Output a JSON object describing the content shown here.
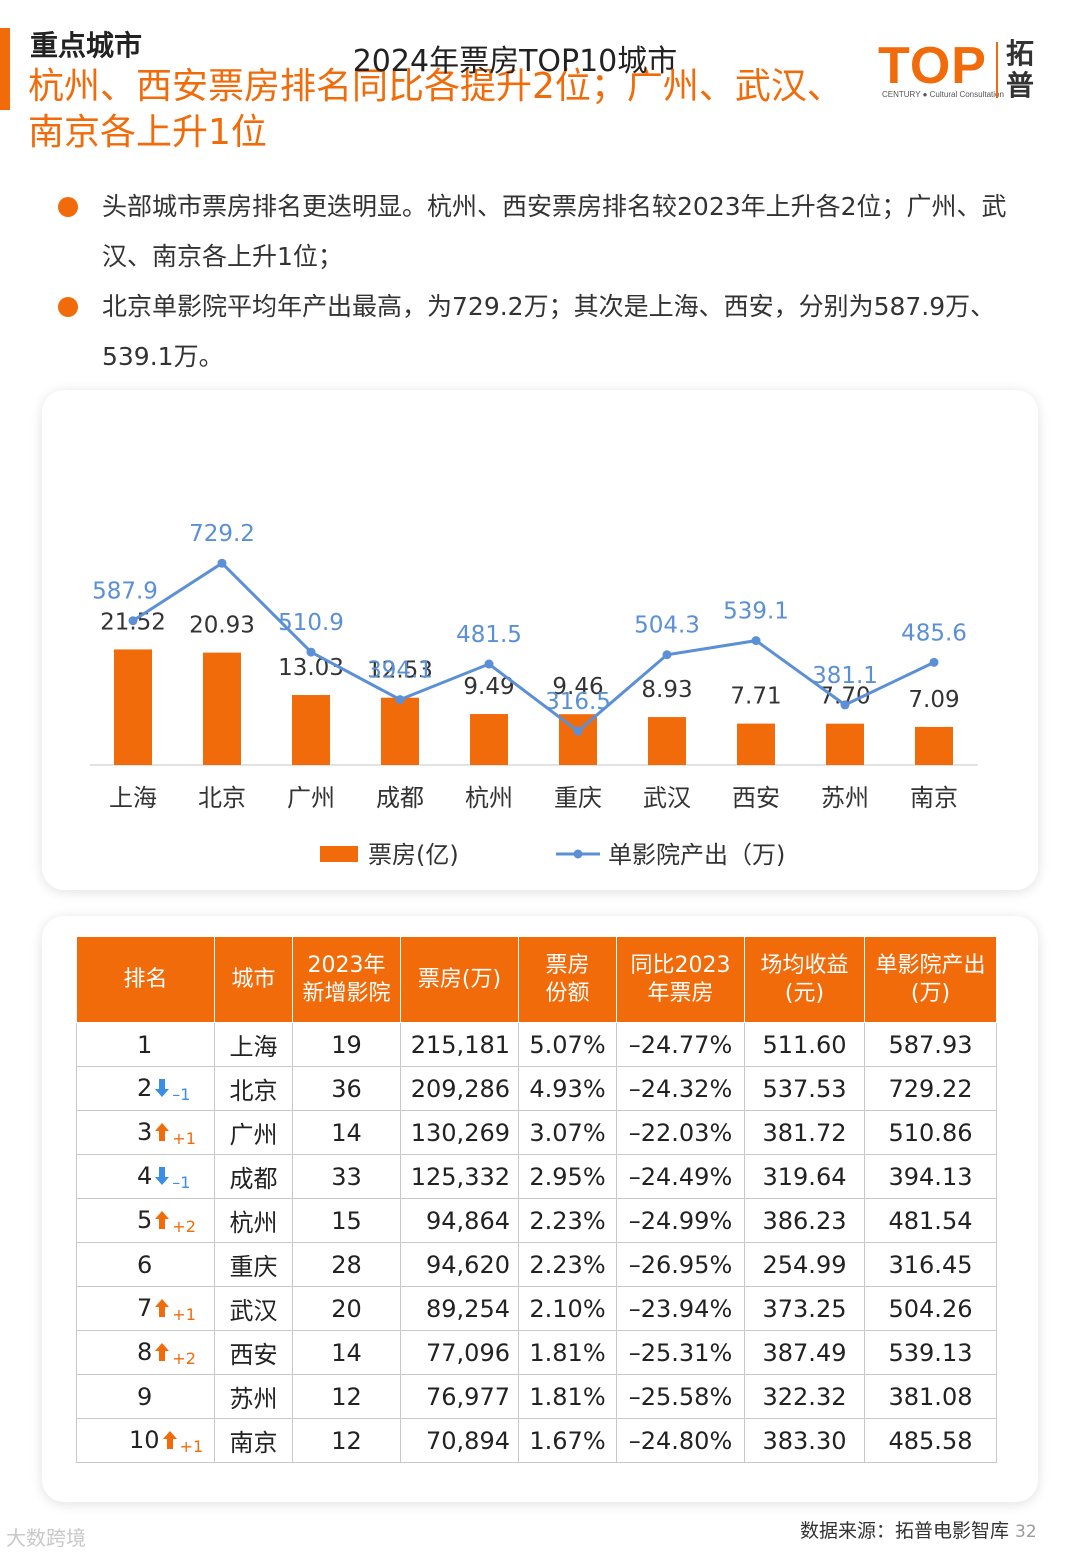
{
  "header": {
    "section": "重点城市",
    "headline": "杭州、西安票房排名同比各提升2位；广州、武汉、南京各上升1位",
    "logo_main": "TOP",
    "logo_sub": "CENTURY ● Cultural Consultation",
    "logo_cn": "拓普"
  },
  "bullets": [
    "头部城市票房排名更迭明显。杭州、西安票房排名较2023年上升各2位；广州、武汉、南京各上升1位；",
    "北京单影院平均年产出最高，为729.2万；其次是上海、西安，分别为587.9万、539.1万。"
  ],
  "chart_data": {
    "type": "bar",
    "title": "2024年票房TOP10城市",
    "categories": [
      "上海",
      "北京",
      "广州",
      "成都",
      "杭州",
      "重庆",
      "武汉",
      "西安",
      "苏州",
      "南京"
    ],
    "series": [
      {
        "name": "票房(亿)",
        "type": "bar",
        "color": "#f26b0a",
        "values": [
          21.52,
          20.93,
          13.03,
          12.53,
          9.49,
          9.46,
          8.93,
          7.71,
          7.7,
          7.09
        ]
      },
      {
        "name": "单影院产出（万)",
        "type": "line",
        "color": "#5b8fd6",
        "values": [
          587.9,
          729.2,
          510.9,
          394.1,
          481.5,
          316.5,
          504.3,
          539.1,
          381.1,
          485.6
        ]
      }
    ],
    "legend": "bottom",
    "grid": false
  },
  "table": {
    "headers": [
      "排名",
      "城市",
      "2023年\n新增影院",
      "票房(万)",
      "票房\n份额",
      "同比2023\n年票房",
      "场均收益\n(元)",
      "单影院产出\n(万)"
    ],
    "rows": [
      {
        "rank": "1",
        "dir": "",
        "change": "",
        "city": "上海",
        "new": "19",
        "box": "215,181",
        "share": "5.07%",
        "yoy": "–24.77%",
        "avg": "511.60",
        "output": "587.93"
      },
      {
        "rank": "2",
        "dir": "down",
        "change": "–1",
        "city": "北京",
        "new": "36",
        "box": "209,286",
        "share": "4.93%",
        "yoy": "–24.32%",
        "avg": "537.53",
        "output": "729.22"
      },
      {
        "rank": "3",
        "dir": "up",
        "change": "+1",
        "city": "广州",
        "new": "14",
        "box": "130,269",
        "share": "3.07%",
        "yoy": "–22.03%",
        "avg": "381.72",
        "output": "510.86"
      },
      {
        "rank": "4",
        "dir": "down",
        "change": "–1",
        "city": "成都",
        "new": "33",
        "box": "125,332",
        "share": "2.95%",
        "yoy": "–24.49%",
        "avg": "319.64",
        "output": "394.13"
      },
      {
        "rank": "5",
        "dir": "up",
        "change": "+2",
        "city": "杭州",
        "new": "15",
        "box": "94,864",
        "share": "2.23%",
        "yoy": "–24.99%",
        "avg": "386.23",
        "output": "481.54"
      },
      {
        "rank": "6",
        "dir": "",
        "change": "",
        "city": "重庆",
        "new": "28",
        "box": "94,620",
        "share": "2.23%",
        "yoy": "–26.95%",
        "avg": "254.99",
        "output": "316.45"
      },
      {
        "rank": "7",
        "dir": "up",
        "change": "+1",
        "city": "武汉",
        "new": "20",
        "box": "89,254",
        "share": "2.10%",
        "yoy": "–23.94%",
        "avg": "373.25",
        "output": "504.26"
      },
      {
        "rank": "8",
        "dir": "up",
        "change": "+2",
        "city": "西安",
        "new": "14",
        "box": "77,096",
        "share": "1.81%",
        "yoy": "–25.31%",
        "avg": "387.49",
        "output": "539.13"
      },
      {
        "rank": "9",
        "dir": "",
        "change": "",
        "city": "苏州",
        "new": "12",
        "box": "76,977",
        "share": "1.81%",
        "yoy": "–25.58%",
        "avg": "322.32",
        "output": "381.08"
      },
      {
        "rank": "10",
        "dir": "up",
        "change": "+1",
        "city": "南京",
        "new": "12",
        "box": "70,894",
        "share": "1.67%",
        "yoy": "–24.80%",
        "avg": "383.30",
        "output": "485.58"
      }
    ]
  },
  "footer": {
    "source": "数据来源：拓普电影智库",
    "page": "32",
    "watermark": "大数跨境"
  }
}
